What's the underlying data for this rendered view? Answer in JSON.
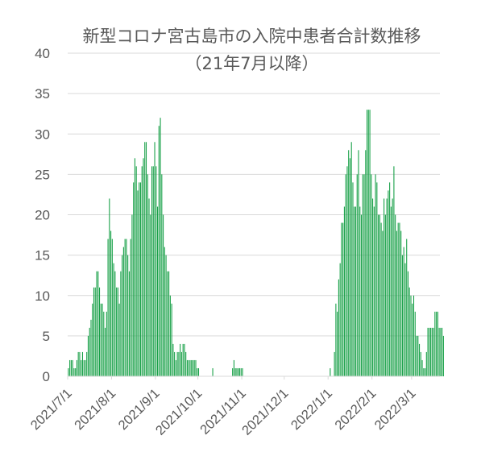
{
  "chart_data": {
    "type": "bar",
    "title": "新型コロナ宮古島市の入院中患者合計数推移\n（21年7月以降）",
    "xlabel": "",
    "ylabel": "",
    "ylim": [
      0,
      40
    ],
    "yticks": [
      0,
      5,
      10,
      15,
      20,
      25,
      30,
      35,
      40
    ],
    "grid": true,
    "legend": "none",
    "bar_color": "#17A047",
    "grid_color": "#D9D9D9",
    "tick_label_color": "#595959",
    "x_start": "2021/7/1",
    "x_end": "2022/3/20",
    "xticks": [
      "2021/7/1",
      "2021/8/1",
      "2021/9/1",
      "2021/10/1",
      "2021/11/1",
      "2021/12/1",
      "2022/1/1",
      "2022/2/1",
      "2022/3/1"
    ],
    "series": [
      {
        "values": [
          1,
          2,
          2,
          2,
          1,
          1,
          2,
          3,
          3,
          2,
          3,
          2,
          2,
          3,
          5,
          6,
          7,
          9,
          11,
          11,
          13,
          13,
          11,
          9,
          9,
          8,
          6,
          8,
          17,
          22,
          18,
          17,
          14,
          13,
          11,
          11,
          9,
          13,
          15,
          16,
          17,
          17,
          15,
          13,
          17,
          20,
          24,
          27,
          26,
          23,
          24,
          24,
          26,
          27,
          29,
          29,
          25,
          22,
          20,
          26,
          26,
          29,
          26,
          21,
          31,
          32,
          25,
          20,
          16,
          15,
          13,
          13,
          10,
          9,
          4,
          3,
          2,
          3,
          3,
          4,
          3,
          4,
          4,
          3,
          2,
          2,
          2,
          2,
          2,
          2,
          2,
          1,
          1,
          0,
          0,
          0,
          0,
          0,
          0,
          0,
          0,
          0,
          1,
          0,
          0,
          0,
          0,
          0,
          0,
          0,
          0,
          0,
          0,
          0,
          0,
          0,
          1,
          2,
          1,
          1,
          1,
          1,
          1,
          1,
          0,
          0,
          0,
          0,
          0,
          0,
          0,
          0,
          0,
          0,
          0,
          0,
          0,
          0,
          0,
          0,
          0,
          0,
          0,
          0,
          0,
          0,
          0,
          0,
          0,
          0,
          0,
          0,
          0,
          0,
          0,
          0,
          0,
          0,
          0,
          0,
          0,
          0,
          0,
          0,
          0,
          0,
          0,
          0,
          0,
          0,
          0,
          0,
          0,
          0,
          0,
          0,
          0,
          0,
          0,
          0,
          0,
          0,
          0,
          0,
          0,
          1,
          0,
          0,
          3,
          9,
          8,
          12,
          14,
          19,
          19,
          21,
          25,
          26,
          28,
          27,
          29,
          24,
          21,
          21,
          25,
          28,
          21,
          20,
          25,
          25,
          28,
          33,
          33,
          33,
          25,
          22,
          21,
          25,
          24,
          20,
          20,
          19,
          18,
          22,
          20,
          22,
          23,
          24,
          21,
          22,
          26,
          20,
          18,
          19,
          19,
          18,
          15,
          16,
          14,
          17,
          13,
          11,
          10,
          9,
          10,
          8,
          5,
          5,
          4,
          3,
          2,
          1,
          1,
          3,
          6,
          6,
          6,
          6,
          6,
          8,
          8,
          8,
          6,
          6,
          6,
          5
        ]
      }
    ]
  }
}
